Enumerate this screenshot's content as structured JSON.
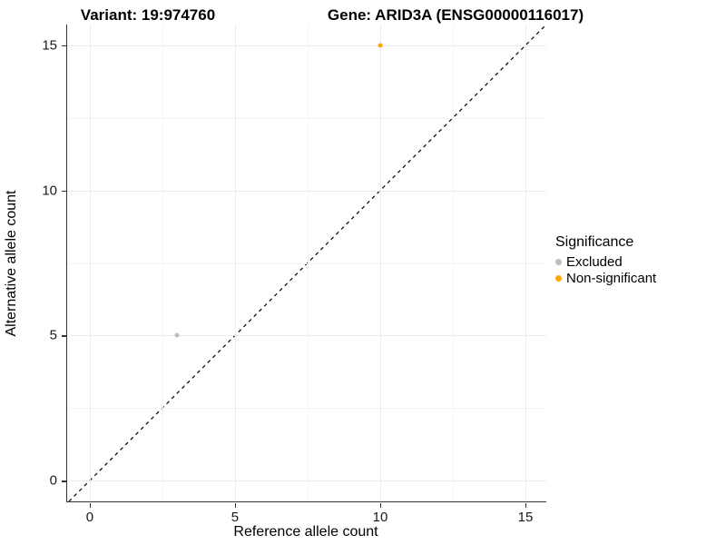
{
  "titles": {
    "variant": "Variant: 19:974760",
    "gene": "Gene: ARID3A (ENSG00000116017)"
  },
  "axes": {
    "x": {
      "label": "Reference allele count",
      "ticks": [
        "0",
        "5",
        "10",
        "15"
      ]
    },
    "y": {
      "label": "Alternative allele count",
      "ticks": [
        "0",
        "5",
        "10",
        "15"
      ]
    }
  },
  "legend": {
    "title": "Significance",
    "items": [
      {
        "label": "Excluded",
        "color": "#bebebe"
      },
      {
        "label": "Non-significant",
        "color": "#ffa500"
      }
    ]
  },
  "chart_data": {
    "type": "scatter",
    "title": "Variant: 19:974760 — Gene: ARID3A (ENSG00000116017)",
    "xlabel": "Reference allele count",
    "ylabel": "Alternative allele count",
    "xlim": [
      -0.78,
      15.72
    ],
    "ylim": [
      -0.72,
      15.72
    ],
    "x_ticks": [
      0,
      5,
      10,
      15
    ],
    "y_ticks": [
      0,
      5,
      10,
      15
    ],
    "x_minor_ticks": [
      2.5,
      7.5,
      12.5
    ],
    "y_minor_ticks": [
      2.5,
      7.5,
      12.5
    ],
    "grid": true,
    "legend_title": "Significance",
    "legend_position": "right",
    "reference_line": {
      "type": "identity",
      "slope": 1,
      "intercept": 0,
      "style": "dashed",
      "color": "#000000"
    },
    "series": [
      {
        "name": "Excluded",
        "color": "#bebebe",
        "point_size": 5,
        "points": [
          [
            3,
            5
          ]
        ]
      },
      {
        "name": "Non-significant",
        "color": "#ffa500",
        "point_size": 5,
        "points": [
          [
            10,
            15
          ]
        ]
      }
    ]
  }
}
